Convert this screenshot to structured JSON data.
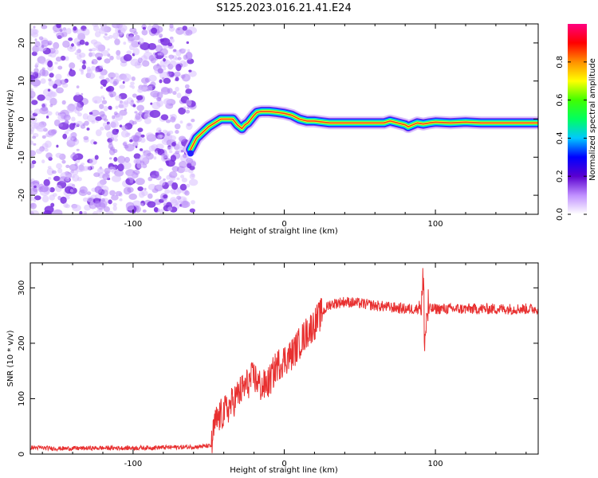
{
  "title": "S125.2023.016.21.41.E24",
  "chart_data": [
    {
      "type": "heatmap",
      "xlabel": "Height of straight line (km)",
      "ylabel": "Frequency (Hz)",
      "xlim": [
        -168,
        168
      ],
      "ylim": [
        -25,
        25
      ],
      "xticks": [
        -100,
        0,
        100
      ],
      "xtick_labels": [
        "-100",
        "0",
        "100"
      ],
      "yticks": [
        -20,
        -10,
        0,
        10,
        20
      ],
      "ytick_labels": [
        "-20",
        "-10",
        "0",
        "10",
        "20"
      ],
      "grid": false,
      "noise_region": {
        "x_from": -168,
        "x_to": -60,
        "y_from": -25,
        "y_to": 25
      },
      "signal_ridge": {
        "x": [
          -62,
          -58,
          -54,
          -50,
          -46,
          -42,
          -38,
          -34,
          -31,
          -28,
          -26,
          -24,
          -22,
          -20,
          -18,
          -15,
          -10,
          -5,
          0,
          5,
          10,
          15,
          20,
          30,
          40,
          50,
          60,
          66,
          70,
          75,
          80,
          82,
          85,
          88,
          92,
          96,
          100,
          110,
          120,
          130,
          140,
          150,
          160,
          168
        ],
        "freq_hz": [
          -8,
          -5,
          -3.5,
          -2,
          -1,
          0,
          0,
          0,
          -1.5,
          -2.5,
          -1.5,
          -1,
          0,
          1,
          1.8,
          2,
          2,
          1.8,
          1.5,
          1,
          0,
          -0.5,
          -0.5,
          -1,
          -1,
          -1,
          -1,
          -1,
          -0.5,
          -1,
          -1.5,
          -2,
          -1.5,
          -1,
          -1.3,
          -1,
          -0.8,
          -1,
          -0.8,
          -1,
          -1,
          -1,
          -1,
          -1
        ]
      },
      "colorbar": {
        "label": "Normalized spectral amplitude",
        "range": [
          0,
          1
        ],
        "ticks": [
          0,
          0.2,
          0.4,
          0.6,
          0.8
        ],
        "tick_labels": [
          "0.0",
          "0.2",
          "0.4",
          "0.6",
          "0.8"
        ],
        "colors": [
          "#ffffff",
          "#c090ff",
          "#5a00d0",
          "#0000ff",
          "#00c8ff",
          "#00ff60",
          "#40ff00",
          "#ffff00",
          "#ff9000",
          "#ff0000",
          "#ff0080"
        ]
      }
    },
    {
      "type": "line",
      "xlabel": "Height of straight line (km)",
      "ylabel": "SNR (10 * v/v)",
      "xlim": [
        -168,
        168
      ],
      "ylim": [
        0,
        345
      ],
      "xticks": [
        -100,
        0,
        100
      ],
      "xtick_labels": [
        "-100",
        "0",
        "100"
      ],
      "yticks": [
        0,
        100,
        200,
        300
      ],
      "ytick_labels": [
        "0",
        "100",
        "200",
        "300"
      ],
      "grid": false,
      "color": "#e83030",
      "series": [
        {
          "x": [
            -168,
            -150,
            -120,
            -100,
            -80,
            -60,
            -48,
            -46,
            -42,
            -38,
            -35,
            -30,
            -25,
            -20,
            -15,
            -10,
            -5,
            0,
            5,
            10,
            15,
            20,
            25,
            30,
            40,
            50,
            60,
            70,
            80,
            88,
            91,
            92,
            93,
            94,
            95,
            96,
            100,
            110,
            120,
            130,
            140,
            150,
            160,
            168
          ],
          "values": [
            12,
            10,
            11,
            11,
            12,
            13,
            15,
            55,
            70,
            80,
            90,
            110,
            125,
            140,
            120,
            130,
            160,
            170,
            180,
            200,
            220,
            235,
            255,
            270,
            275,
            272,
            268,
            265,
            262,
            262,
            275,
            310,
            200,
            240,
            262,
            262,
            262,
            262,
            262,
            262,
            262,
            262,
            262,
            262
          ]
        }
      ]
    }
  ]
}
